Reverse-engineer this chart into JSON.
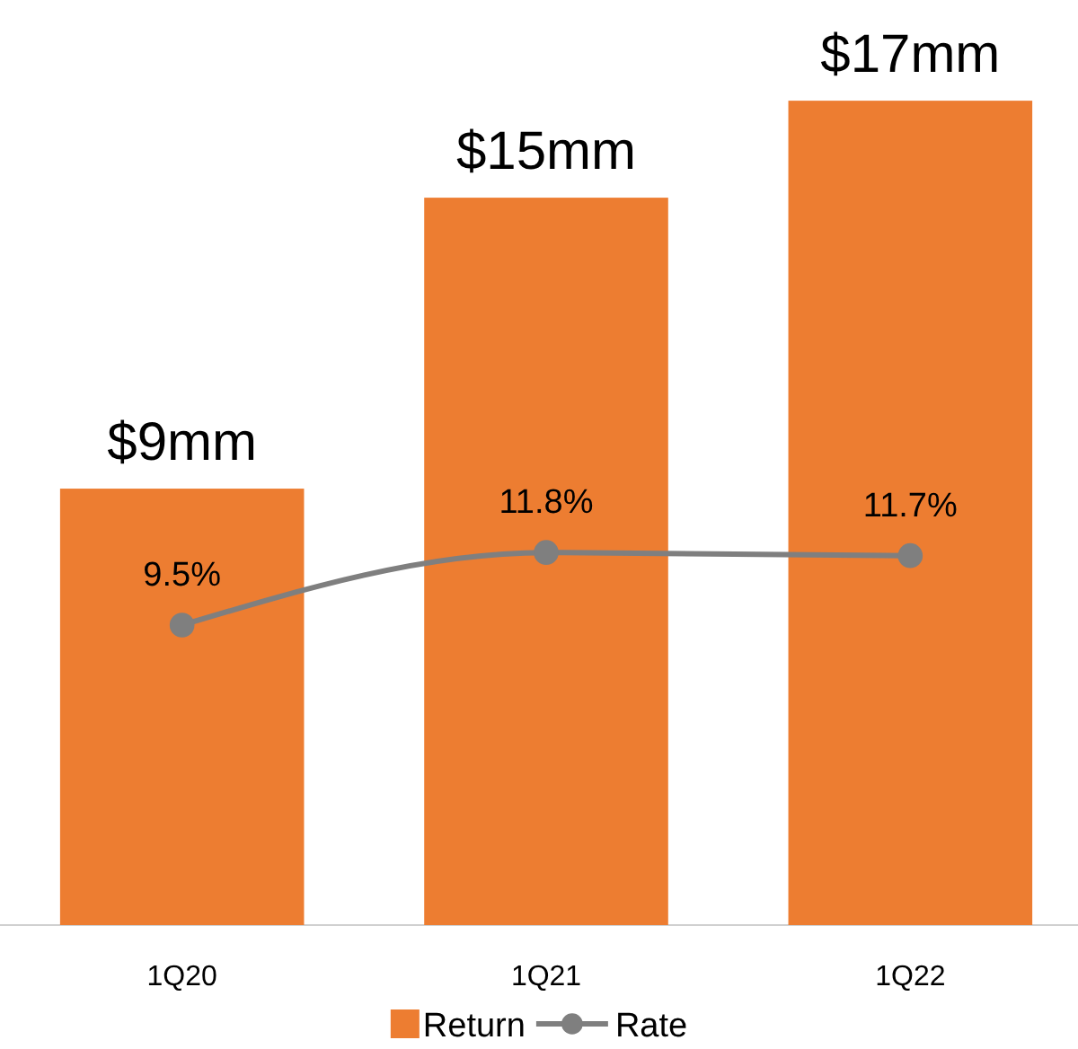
{
  "chart_data": {
    "type": "bar",
    "categories": [
      "1Q20",
      "1Q21",
      "1Q22"
    ],
    "series": [
      {
        "name": "Return",
        "color": "#ed7d31",
        "values": [
          9,
          15,
          17
        ],
        "value_labels": [
          "$9mm",
          "$15mm",
          "$17mm"
        ]
      },
      {
        "name": "Rate",
        "type": "line",
        "axis": "y2",
        "color": "#7f7f7f",
        "values": [
          9.5,
          11.8,
          11.7
        ],
        "value_labels": [
          "9.5%",
          "11.8%",
          "11.7%"
        ],
        "marker": "circle"
      }
    ],
    "tick_labels": "x",
    "legend": "bottom",
    "grid": false
  }
}
